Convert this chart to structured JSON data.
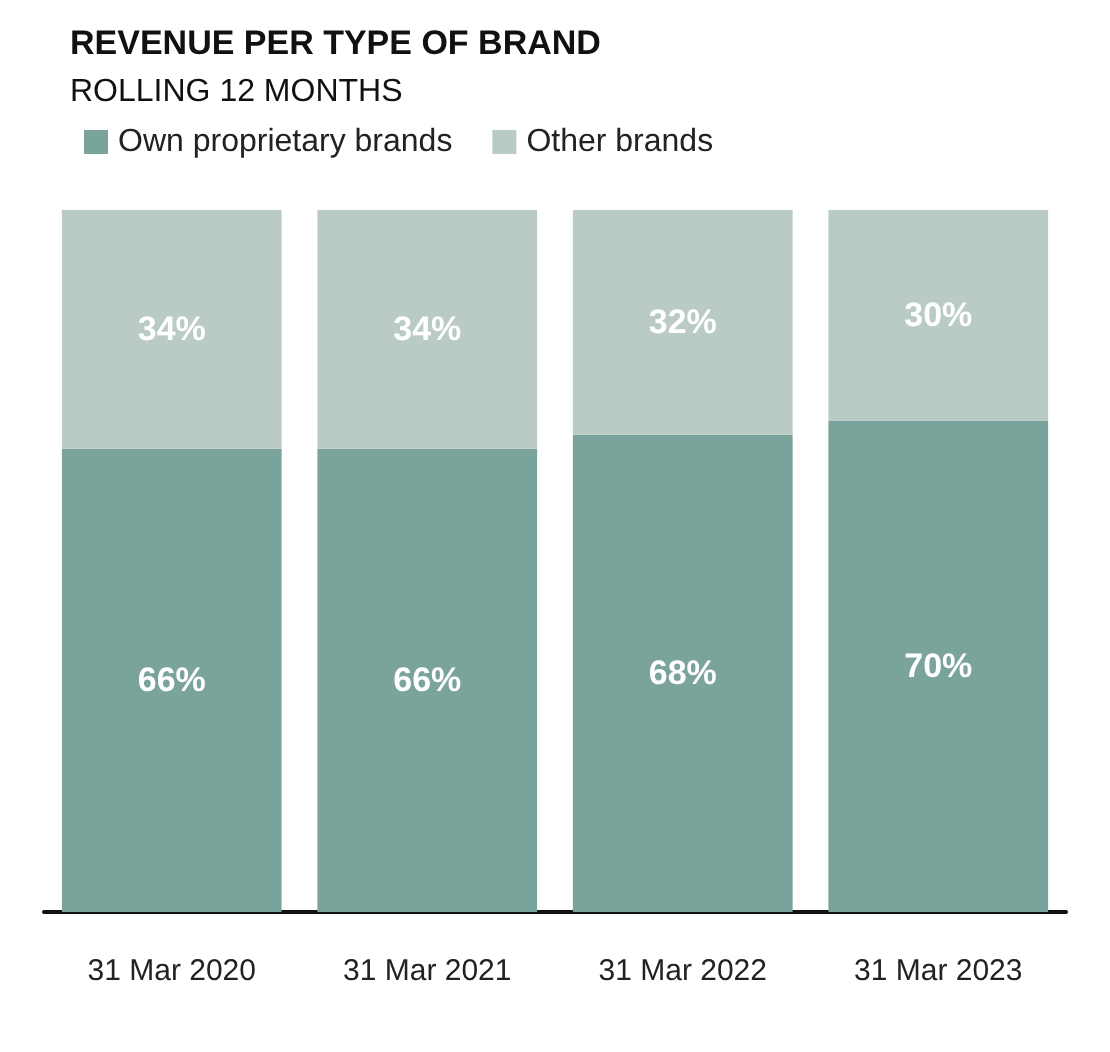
{
  "chart_data": {
    "type": "bar",
    "title": "REVENUE PER TYPE OF BRAND",
    "subtitle": "ROLLING 12 MONTHS",
    "stacked": true,
    "legend": "top left",
    "categories": [
      "31 Mar 2020",
      "31 Mar 2021",
      "31 Mar 2022",
      "31 Mar 2023"
    ],
    "series": [
      {
        "name": "Own proprietary brands",
        "color": "#7aa39b",
        "values": [
          66,
          66,
          68,
          70
        ],
        "value_labels": [
          "66%",
          "66%",
          "68%",
          "70%"
        ]
      },
      {
        "name": "Other brands",
        "color": "#b9cbc4",
        "values": [
          34,
          34,
          32,
          30
        ],
        "value_labels": [
          "34%",
          "34%",
          "32%",
          "30%"
        ]
      }
    ]
  }
}
